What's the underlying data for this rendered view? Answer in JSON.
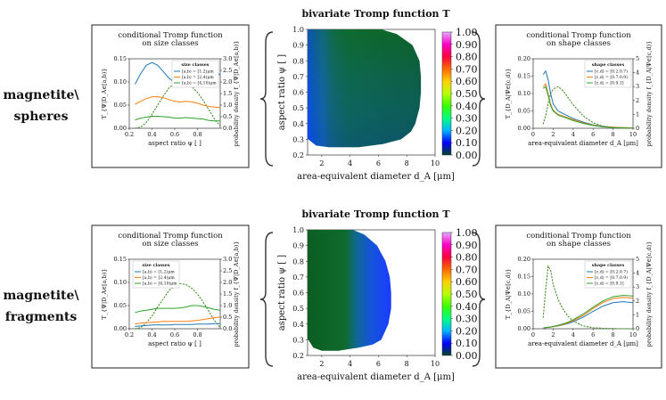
{
  "rows": [
    {
      "label_lines": [
        "magnetite\\",
        "spheres"
      ],
      "left_panel": {
        "title_lines": [
          "conditional Tromp function",
          "on size classes"
        ],
        "ylabel": "T_{Ψ|D_A∈[a,b)}",
        "ylabel2": "probability density f_{Ψ|D_A∈[a,b)}",
        "xlabel": "aspect ratio ψ [ ]",
        "legend_title": "size classes",
        "legend_position": "top-right"
      },
      "heatmap": {
        "title": "bivariate Tromp function T",
        "xlabel": "area-equivalent diameter d_A [μm]",
        "ylabel": "aspect ratio ψ [ ]"
      },
      "right_panel": {
        "title_lines": [
          "conditional Tromp function",
          "on shape classes"
        ],
        "ylabel": "T_{D_A|Ψ∈[c,d)}",
        "ylabel2": "probability density f_{D_A|Ψ∈[c,d)}",
        "xlabel": "area-equivalent diameter d_A [μm]",
        "legend_title": "shape classes",
        "legend_position": "top-right"
      }
    },
    {
      "label_lines": [
        "magnetite\\",
        "fragments"
      ],
      "left_panel": {
        "title_lines": [
          "conditional Tromp function",
          "on size classes"
        ],
        "ylabel": "T_{Ψ|D_A∈[a,b)}",
        "ylabel2": "probability density f_{Ψ|D_A∈[a,b)}",
        "xlabel": "aspect ratio ψ [ ]",
        "legend_title": "size classes",
        "legend_position": "top-left"
      },
      "heatmap": {
        "title": "bivariate Tromp function T",
        "xlabel": "area-equivalent diameter d_A [μm]",
        "ylabel": "aspect ratio ψ [ ]"
      },
      "right_panel": {
        "title_lines": [
          "conditional Tromp function",
          "on shape classes"
        ],
        "ylabel": "T_{D_A|Ψ∈[c,d)}",
        "ylabel2": "probability density f_{D_A|Ψ∈[c,d)}",
        "xlabel": "area-equivalent diameter d_A [μm]",
        "legend_title": "shape classes",
        "legend_position": "top-right"
      }
    }
  ],
  "colorbar": {
    "ticks": [
      "0.00",
      "0.10",
      "0.20",
      "0.30",
      "0.40",
      "0.50",
      "0.60",
      "0.70",
      "0.80",
      "0.90",
      "1.00"
    ],
    "colors": [
      "#00442a",
      "#0000ff",
      "#00b4ff",
      "#00ff7f",
      "#3aff00",
      "#b8ff00",
      "#ffd000",
      "#ff6a00",
      "#ff003c",
      "#ff00c8",
      "#e6a8ff"
    ]
  },
  "colors": {
    "series1": "#1f77b4",
    "series2": "#ff7f0e",
    "series3": "#2ca02c",
    "bracket": "#333333"
  },
  "chart_data": [
    {
      "type": "line",
      "id": "spheres_size",
      "title": "conditional Tromp function on size classes",
      "xlabel": "aspect ratio ψ [ ]",
      "ylabel": "T_{Ψ|D_A∈[a,b)}",
      "y2label": "probability density f_{Ψ|D_A∈[a,b)}",
      "xlim": [
        0.2,
        1.0
      ],
      "ylim": [
        0,
        0.15
      ],
      "y2lim": [
        0,
        3.0
      ],
      "xticks": [
        "0.2",
        "0.4",
        "0.6",
        "0.8"
      ],
      "yticks": [
        "0.00",
        "0.05",
        "0.10",
        "0.15"
      ],
      "y2ticks": [
        "0.0",
        "0.5",
        "1.0",
        "1.5",
        "2.0",
        "2.5",
        "3.0"
      ],
      "x": [
        0.25,
        0.3,
        0.35,
        0.4,
        0.45,
        0.5,
        0.55,
        0.6,
        0.65,
        0.7,
        0.75,
        0.8,
        0.85,
        0.9,
        0.95,
        1.0
      ],
      "series": [
        {
          "name": "[a,b) = [1,2)μm",
          "color": "#1f77b4",
          "values": [
            0.095,
            0.118,
            0.136,
            0.142,
            0.136,
            0.122,
            0.108,
            0.098,
            0.096,
            0.101,
            0.106,
            0.108,
            0.105,
            0.099,
            0.108,
            0.118
          ]
        },
        {
          "name": "[a,b) = [2,4)μm",
          "color": "#ff7f0e",
          "values": [
            0.052,
            0.058,
            0.064,
            0.068,
            0.068,
            0.066,
            0.062,
            0.058,
            0.057,
            0.058,
            0.057,
            0.054,
            0.05,
            0.047,
            0.046,
            0.045
          ]
        },
        {
          "name": "[a,b) = [4,10)μm",
          "color": "#2ca02c",
          "values": [
            0.018,
            0.022,
            0.024,
            0.026,
            0.026,
            0.025,
            0.024,
            0.022,
            0.022,
            0.023,
            0.022,
            0.021,
            0.02,
            0.017,
            0.016,
            0.016
          ]
        }
      ],
      "density_series": [
        {
          "color": "#1f77b4",
          "values": [
            0.0,
            0.05,
            0.25,
            0.6,
            1.0,
            1.4,
            1.75,
            1.95,
            2.0,
            1.95,
            1.8,
            1.55,
            1.2,
            0.8,
            0.4,
            0.1
          ]
        },
        {
          "color": "#ff7f0e",
          "values": [
            0.0,
            0.05,
            0.25,
            0.6,
            1.0,
            1.4,
            1.75,
            1.95,
            2.0,
            1.95,
            1.8,
            1.55,
            1.2,
            0.8,
            0.4,
            0.1
          ]
        },
        {
          "color": "#2ca02c",
          "values": [
            0.0,
            0.05,
            0.25,
            0.6,
            1.0,
            1.4,
            1.75,
            1.95,
            2.0,
            1.95,
            1.8,
            1.55,
            1.2,
            0.8,
            0.4,
            0.1
          ]
        }
      ]
    },
    {
      "type": "heatmap",
      "id": "spheres_bivariate",
      "title": "bivariate Tromp function T",
      "xlabel": "area-equivalent diameter d_A [μm]",
      "ylabel": "aspect ratio ψ [ ]",
      "xlim": [
        1,
        10
      ],
      "ylim": [
        0.2,
        1.0
      ],
      "zlim": [
        0,
        1
      ],
      "xticks": [
        "2",
        "4",
        "6",
        "8",
        "10"
      ],
      "yticks": [
        "0.2",
        "0.3",
        "0.4",
        "0.5",
        "0.6",
        "0.7",
        "0.8",
        "0.9",
        "1.0"
      ],
      "support_right_edge": {
        "psi": [
          1.0,
          0.97,
          0.9,
          0.8,
          0.7,
          0.6,
          0.5,
          0.4,
          0.35,
          0.3,
          0.27,
          0.25
        ],
        "d_max": [
          6.2,
          7.3,
          8.4,
          8.9,
          9.0,
          9.0,
          8.9,
          8.6,
          8.3,
          7.6,
          6.3,
          4.6
        ]
      },
      "support_bottom_edge": {
        "psi": [
          0.3,
          0.26,
          0.25,
          0.25
        ],
        "d": [
          1.05,
          1.6,
          2.5,
          4.6
        ]
      },
      "values_note_colors": {
        "small_d_low_psi": 0.1,
        "small_d_high_psi": 0.04,
        "large_d": 0.02
      }
    },
    {
      "type": "line",
      "id": "spheres_shape",
      "title": "conditional Tromp function on shape classes",
      "xlabel": "area-equivalent diameter d_A [μm]",
      "ylabel": "T_{D_A|Ψ∈[c,d)}",
      "y2label": "probability density f_{D_A|Ψ∈[c,d)}",
      "xlim": [
        0,
        10
      ],
      "ylim": [
        0,
        0.2
      ],
      "y2lim": [
        0,
        5
      ],
      "xticks": [
        "0",
        "2",
        "4",
        "6",
        "8",
        "10"
      ],
      "yticks": [
        "0.00",
        "0.05",
        "0.10",
        "0.15",
        "0.20"
      ],
      "y2ticks": [
        "0",
        "1",
        "2",
        "3",
        "4",
        "5"
      ],
      "x": [
        1.0,
        1.25,
        1.5,
        1.75,
        2.0,
        2.5,
        3.0,
        3.5,
        4.0,
        5.0,
        6.0,
        7.0,
        8.0,
        9.0,
        10.0
      ],
      "series": [
        {
          "name": "[c,d) = [0.2,0.7)",
          "color": "#1f77b4",
          "values": [
            0.155,
            0.165,
            0.14,
            0.1,
            0.07,
            0.05,
            0.042,
            0.035,
            0.028,
            0.018,
            0.01,
            0.006,
            0.003,
            0.002,
            0.001
          ]
        },
        {
          "name": "[c,d) = [0.7,0.9)",
          "color": "#ff7f0e",
          "values": [
            0.12,
            0.128,
            0.1,
            0.07,
            0.052,
            0.04,
            0.035,
            0.03,
            0.025,
            0.016,
            0.009,
            0.005,
            0.003,
            0.002,
            0.001
          ]
        },
        {
          "name": "[c,d) = [0.9,1]",
          "color": "#2ca02c",
          "values": [
            0.115,
            0.12,
            0.095,
            0.065,
            0.05,
            0.038,
            0.033,
            0.028,
            0.022,
            0.014,
            0.008,
            0.004,
            0.002,
            0.001,
            0.001
          ]
        }
      ],
      "density_series": [
        {
          "color": "#1f77b4",
          "values": [
            0.3,
            0.9,
            1.8,
            2.5,
            2.8,
            3.0,
            2.7,
            2.2,
            1.7,
            0.9,
            0.4,
            0.15,
            0.05,
            0.02,
            0.0
          ]
        },
        {
          "color": "#ff7f0e",
          "values": [
            0.3,
            0.9,
            1.8,
            2.5,
            2.8,
            3.0,
            2.7,
            2.2,
            1.7,
            0.9,
            0.4,
            0.15,
            0.05,
            0.02,
            0.0
          ]
        },
        {
          "color": "#2ca02c",
          "values": [
            0.3,
            0.9,
            1.8,
            2.5,
            2.8,
            3.0,
            2.7,
            2.2,
            1.7,
            0.9,
            0.4,
            0.15,
            0.05,
            0.02,
            0.0
          ]
        }
      ]
    },
    {
      "type": "line",
      "id": "fragments_size",
      "title": "conditional Tromp function on size classes",
      "xlabel": "aspect ratio ψ [ ]",
      "ylabel": "T_{Ψ|D_A∈[a,b)}",
      "y2label": "probability density f_{Ψ|D_A∈[a,b)}",
      "xlim": [
        0.2,
        1.0
      ],
      "ylim": [
        0,
        0.15
      ],
      "y2lim": [
        0,
        3.0
      ],
      "xticks": [
        "0.2",
        "0.4",
        "0.6",
        "0.8"
      ],
      "yticks": [
        "0.00",
        "0.05",
        "0.10",
        "0.15"
      ],
      "y2ticks": [
        "0.0",
        "0.5",
        "1.0",
        "1.5",
        "2.0",
        "2.5",
        "3.0"
      ],
      "x": [
        0.25,
        0.3,
        0.35,
        0.4,
        0.45,
        0.5,
        0.55,
        0.6,
        0.65,
        0.7,
        0.75,
        0.8,
        0.85,
        0.9,
        0.95,
        1.0
      ],
      "series": [
        {
          "name": "[a,b) = [1,2)μm",
          "color": "#1f77b4",
          "values": [
            0.005,
            0.006,
            0.007,
            0.008,
            0.008,
            0.008,
            0.008,
            0.009,
            0.009,
            0.009,
            0.009,
            0.01,
            0.01,
            0.01,
            0.011,
            0.011
          ]
        },
        {
          "name": "[a,b) = [2,4)μm",
          "color": "#ff7f0e",
          "values": [
            0.01,
            0.012,
            0.013,
            0.014,
            0.015,
            0.016,
            0.016,
            0.016,
            0.016,
            0.016,
            0.017,
            0.018,
            0.02,
            0.022,
            0.024,
            0.025
          ]
        },
        {
          "name": "[a,b) = [4,10)μm",
          "color": "#2ca02c",
          "values": [
            0.035,
            0.038,
            0.04,
            0.042,
            0.044,
            0.044,
            0.044,
            0.044,
            0.045,
            0.047,
            0.05,
            0.05,
            0.048,
            0.045,
            0.042,
            0.04
          ]
        }
      ],
      "density_series": [
        {
          "color": "#1f77b4",
          "values": [
            0.0,
            0.05,
            0.25,
            0.55,
            0.95,
            1.3,
            1.65,
            1.85,
            1.95,
            1.9,
            1.75,
            1.5,
            1.15,
            0.75,
            0.35,
            0.05
          ]
        },
        {
          "color": "#ff7f0e",
          "values": [
            0.0,
            0.05,
            0.25,
            0.55,
            0.95,
            1.3,
            1.65,
            1.85,
            1.95,
            1.9,
            1.75,
            1.5,
            1.15,
            0.75,
            0.35,
            0.05
          ]
        },
        {
          "color": "#2ca02c",
          "values": [
            0.0,
            0.05,
            0.25,
            0.55,
            0.95,
            1.3,
            1.65,
            1.85,
            1.95,
            1.9,
            1.75,
            1.5,
            1.15,
            0.75,
            0.35,
            0.05
          ]
        }
      ]
    },
    {
      "type": "heatmap",
      "id": "fragments_bivariate",
      "title": "bivariate Tromp function T",
      "xlabel": "area-equivalent diameter d_A [μm]",
      "ylabel": "aspect ratio ψ [ ]",
      "xlim": [
        1,
        10
      ],
      "ylim": [
        0.2,
        1.0
      ],
      "zlim": [
        0,
        1
      ],
      "xticks": [
        "2",
        "4",
        "6",
        "8",
        "10"
      ],
      "yticks": [
        "0.2",
        "0.3",
        "0.4",
        "0.5",
        "0.6",
        "0.7",
        "0.8",
        "0.9",
        "1.0"
      ],
      "support_right_edge": {
        "psi": [
          1.0,
          0.97,
          0.9,
          0.8,
          0.7,
          0.6,
          0.5,
          0.4,
          0.3,
          0.27,
          0.25,
          0.23
        ],
        "d_max": [
          4.2,
          5.0,
          5.9,
          6.5,
          6.8,
          6.9,
          6.9,
          6.7,
          6.2,
          5.6,
          4.6,
          3.2
        ]
      },
      "support_bottom_edge": {
        "psi": [
          0.3,
          0.25,
          0.23,
          0.23
        ],
        "d": [
          1.05,
          1.4,
          2.0,
          3.2
        ]
      },
      "values_note_colors": {
        "small_d": 0.02,
        "large_d": 0.08
      }
    },
    {
      "type": "line",
      "id": "fragments_shape",
      "title": "conditional Tromp function on shape classes",
      "xlabel": "area-equivalent diameter d_A [μm]",
      "ylabel": "T_{D_A|Ψ∈[c,d)}",
      "y2label": "probability density f_{D_A|Ψ∈[c,d)}",
      "xlim": [
        0,
        10
      ],
      "ylim": [
        0,
        0.2
      ],
      "y2lim": [
        0,
        5
      ],
      "xticks": [
        "0",
        "2",
        "4",
        "6",
        "8",
        "10"
      ],
      "yticks": [
        "0.00",
        "0.05",
        "0.10",
        "0.15",
        "0.20"
      ],
      "y2ticks": [
        "0",
        "1",
        "2",
        "3",
        "4",
        "5"
      ],
      "x": [
        1.0,
        1.25,
        1.5,
        1.75,
        2.0,
        2.5,
        3.0,
        3.5,
        4.0,
        5.0,
        6.0,
        7.0,
        8.0,
        9.0,
        10.0
      ],
      "series": [
        {
          "name": "[c,d) = [0.2,0.7)",
          "color": "#1f77b4",
          "values": [
            0.002,
            0.003,
            0.004,
            0.005,
            0.006,
            0.008,
            0.011,
            0.015,
            0.02,
            0.033,
            0.05,
            0.065,
            0.075,
            0.078,
            0.075
          ]
        },
        {
          "name": "[c,d) = [0.7,0.9)",
          "color": "#ff7f0e",
          "values": [
            0.002,
            0.003,
            0.004,
            0.005,
            0.006,
            0.009,
            0.012,
            0.017,
            0.023,
            0.038,
            0.058,
            0.076,
            0.087,
            0.09,
            0.088
          ]
        },
        {
          "name": "[c,d) = [0.9,1]",
          "color": "#2ca02c",
          "values": [
            0.002,
            0.003,
            0.004,
            0.005,
            0.007,
            0.01,
            0.014,
            0.019,
            0.026,
            0.042,
            0.062,
            0.08,
            0.092,
            0.096,
            0.094
          ]
        }
      ],
      "density_series": [
        {
          "color": "#1f77b4",
          "values": [
            0.8,
            2.8,
            4.5,
            4.2,
            3.2,
            2.1,
            1.4,
            0.9,
            0.55,
            0.2,
            0.08,
            0.03,
            0.01,
            0.0,
            0.0
          ]
        },
        {
          "color": "#ff7f0e",
          "values": [
            0.8,
            2.8,
            4.5,
            4.2,
            3.2,
            2.1,
            1.4,
            0.9,
            0.55,
            0.2,
            0.08,
            0.03,
            0.01,
            0.0,
            0.0
          ]
        },
        {
          "color": "#2ca02c",
          "values": [
            0.8,
            2.8,
            4.5,
            4.2,
            3.2,
            2.1,
            1.4,
            0.9,
            0.55,
            0.2,
            0.08,
            0.03,
            0.01,
            0.0,
            0.0
          ]
        }
      ]
    }
  ]
}
